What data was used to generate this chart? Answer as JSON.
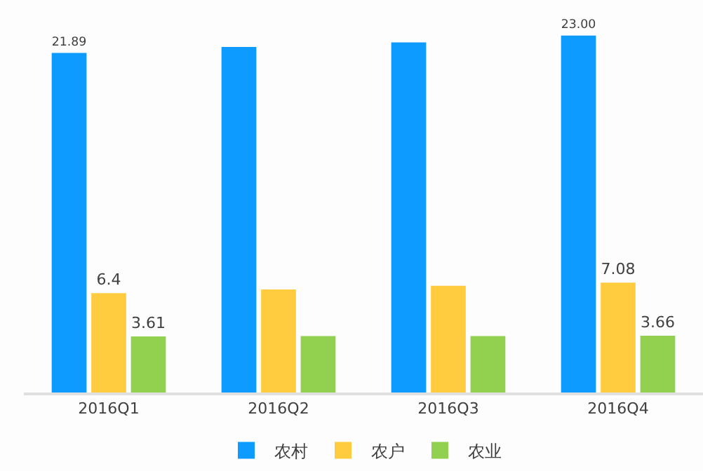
{
  "chart_data": {
    "type": "bar",
    "categories": [
      "2016Q1",
      "2016Q2",
      "2016Q3",
      "2016Q4"
    ],
    "series": [
      {
        "name": "农村",
        "color": "#0d9bff",
        "values": [
          21.89,
          22.27,
          22.56,
          23.0
        ],
        "value_labels": [
          "21.89",
          null,
          null,
          "23.00"
        ]
      },
      {
        "name": "农户",
        "color": "#ffcb3f",
        "values": [
          6.4,
          6.64,
          6.88,
          7.08
        ],
        "value_labels": [
          "6.4",
          null,
          null,
          "7.08"
        ]
      },
      {
        "name": "农业",
        "color": "#92d050",
        "values": [
          3.61,
          3.64,
          3.64,
          3.66
        ],
        "value_labels": [
          "3.61",
          null,
          null,
          "3.66"
        ]
      }
    ],
    "tick_labels": "x",
    "grid": false,
    "legend": "bottom"
  }
}
